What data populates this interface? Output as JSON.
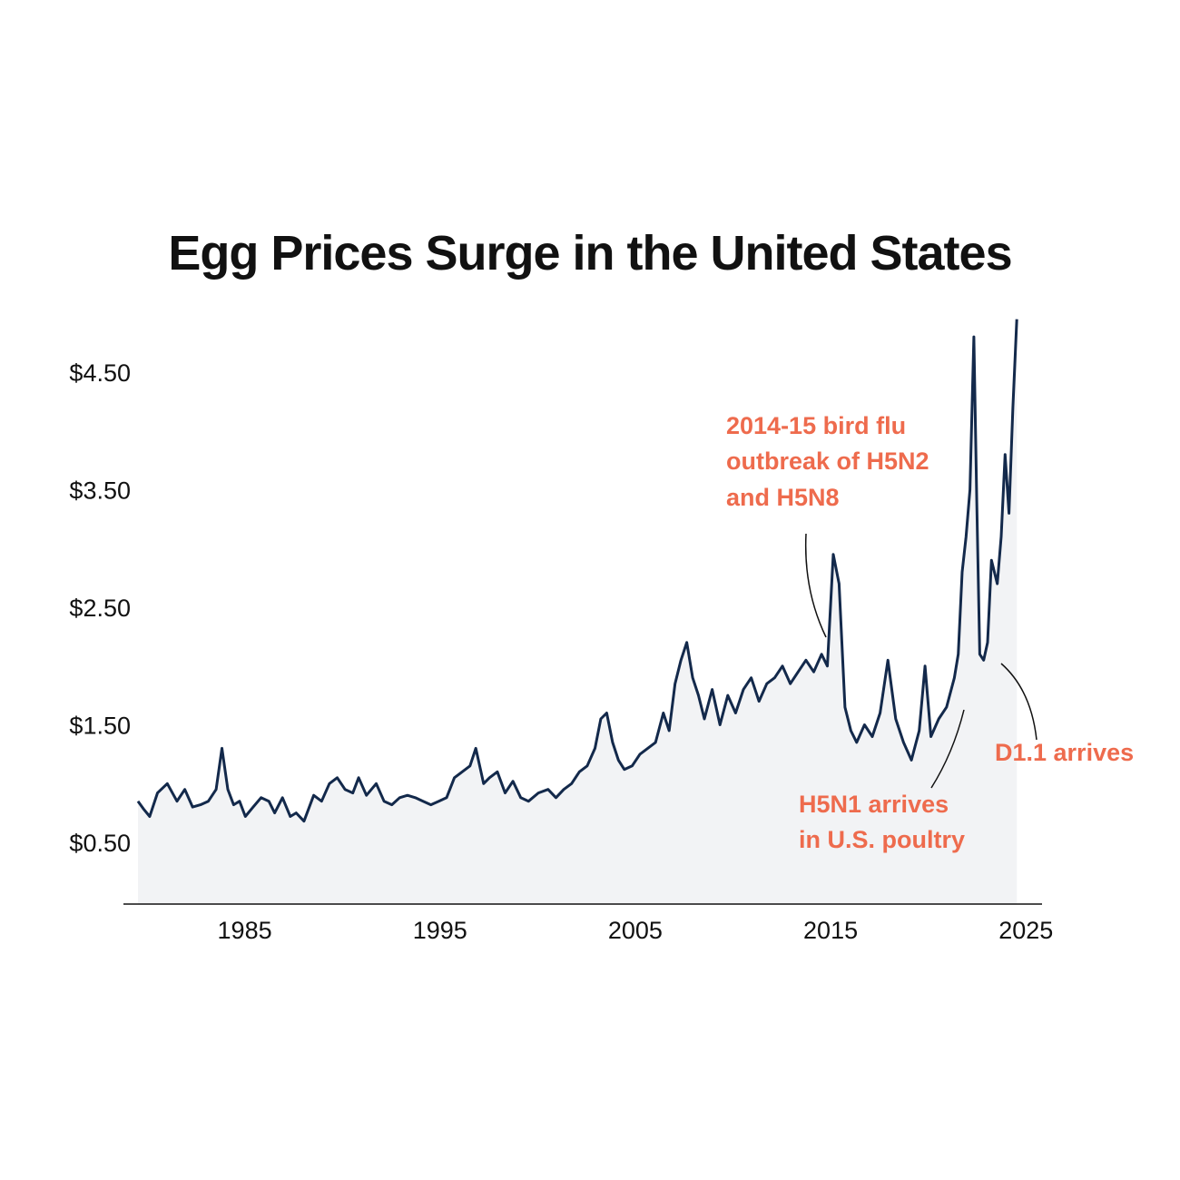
{
  "chart_data": {
    "type": "area",
    "title": "Egg Prices Surge in the United States",
    "xlabel": "",
    "ylabel": "",
    "xlim": [
      1980,
      2025.5
    ],
    "ylim": [
      0,
      5.5
    ],
    "x_ticks": [
      1985,
      1995,
      2005,
      2015,
      2025
    ],
    "x_tick_labels": [
      "1985",
      "1995",
      "2005",
      "2015",
      "2025"
    ],
    "y_ticks": [
      0.5,
      1.5,
      2.5,
      3.5,
      4.5
    ],
    "y_tick_labels": [
      "$0.50",
      "$1.50",
      "$2.50",
      "$3.50",
      "$4.50"
    ],
    "grid": false,
    "colors": {
      "line": "#13294b",
      "area": "#f2f3f5",
      "annotation": "#ee6b4d",
      "axis": "#111111"
    },
    "series": [
      {
        "x": [
          1980.0,
          1980.3,
          1980.6,
          1981.0,
          1981.5,
          1982.0,
          1982.4,
          1982.8,
          1983.2,
          1983.6,
          1984.0,
          1984.3,
          1984.6,
          1984.9,
          1985.2,
          1985.5,
          1985.9,
          1986.3,
          1986.7,
          1987.0,
          1987.4,
          1987.8,
          1988.1,
          1988.5,
          1989.0,
          1989.4,
          1989.8,
          1990.2,
          1990.6,
          1991.0,
          1991.3,
          1991.7,
          1992.2,
          1992.6,
          1993.0,
          1993.4,
          1993.8,
          1994.2,
          1994.6,
          1995.0,
          1995.4,
          1995.8,
          1996.2,
          1996.6,
          1997.0,
          1997.3,
          1997.7,
          1998.0,
          1998.4,
          1998.8,
          1999.2,
          1999.6,
          2000.0,
          2000.5,
          2001.0,
          2001.4,
          2001.8,
          2002.2,
          2002.6,
          2003.0,
          2003.4,
          2003.7,
          2004.0,
          2004.3,
          2004.6,
          2004.9,
          2005.3,
          2005.7,
          2006.1,
          2006.5,
          2006.9,
          2007.2,
          2007.5,
          2007.8,
          2008.1,
          2008.4,
          2008.7,
          2009.0,
          2009.4,
          2009.8,
          2010.2,
          2010.6,
          2011.0,
          2011.4,
          2011.8,
          2012.2,
          2012.6,
          2013.0,
          2013.4,
          2013.8,
          2014.2,
          2014.6,
          2015.0,
          2015.3,
          2015.6,
          2015.9,
          2016.2,
          2016.5,
          2016.8,
          2017.2,
          2017.6,
          2018.0,
          2018.4,
          2018.8,
          2019.2,
          2019.6,
          2020.0,
          2020.3,
          2020.6,
          2021.0,
          2021.4,
          2021.8,
          2022.0,
          2022.2,
          2022.4,
          2022.6,
          2022.8,
          2022.95,
          2023.1,
          2023.3,
          2023.5,
          2023.7,
          2024.0,
          2024.2,
          2024.4,
          2024.6,
          2024.8,
          2025.0
        ],
        "values": [
          0.85,
          0.78,
          0.72,
          0.92,
          1.0,
          0.85,
          0.95,
          0.8,
          0.82,
          0.85,
          0.95,
          1.3,
          0.95,
          0.82,
          0.85,
          0.72,
          0.8,
          0.88,
          0.85,
          0.75,
          0.88,
          0.72,
          0.75,
          0.68,
          0.9,
          0.85,
          1.0,
          1.05,
          0.95,
          0.92,
          1.05,
          0.9,
          1.0,
          0.85,
          0.82,
          0.88,
          0.9,
          0.88,
          0.85,
          0.82,
          0.85,
          0.88,
          1.05,
          1.1,
          1.15,
          1.3,
          1.0,
          1.05,
          1.1,
          0.92,
          1.02,
          0.88,
          0.85,
          0.92,
          0.95,
          0.88,
          0.95,
          1.0,
          1.1,
          1.15,
          1.3,
          1.55,
          1.6,
          1.35,
          1.2,
          1.12,
          1.15,
          1.25,
          1.3,
          1.35,
          1.6,
          1.45,
          1.85,
          2.05,
          2.2,
          1.9,
          1.75,
          1.55,
          1.8,
          1.5,
          1.75,
          1.6,
          1.8,
          1.9,
          1.7,
          1.85,
          1.9,
          2.0,
          1.85,
          1.95,
          2.05,
          1.95,
          2.1,
          2.0,
          2.95,
          2.7,
          1.65,
          1.45,
          1.35,
          1.5,
          1.4,
          1.6,
          2.05,
          1.55,
          1.35,
          1.2,
          1.45,
          2.0,
          1.4,
          1.55,
          1.65,
          1.9,
          2.1,
          2.8,
          3.1,
          3.5,
          4.8,
          3.4,
          2.1,
          2.05,
          2.2,
          2.9,
          2.7,
          3.1,
          3.8,
          3.3,
          4.2,
          4.95
        ]
      }
    ],
    "annotations": [
      {
        "lines": [
          "2014-15 bird flu",
          "outbreak of H5N2",
          "and H5N8"
        ]
      },
      {
        "lines": [
          "H5N1 arrives",
          "in U.S. poultry"
        ]
      },
      {
        "lines": [
          "D1.1 arrives"
        ]
      }
    ]
  }
}
